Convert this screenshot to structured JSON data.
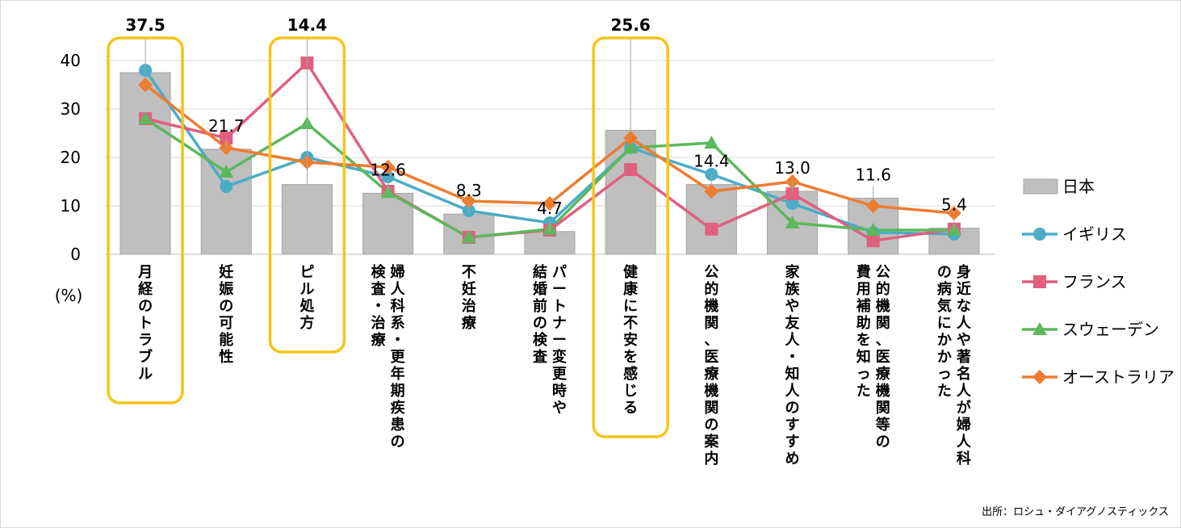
{
  "chart_data": {
    "type": "bar",
    "y_unit_label": "(%)",
    "ylim": [
      0,
      40
    ],
    "yticks": [
      0,
      10,
      20,
      30,
      40
    ],
    "grid": true,
    "legend_position": "right",
    "categories": [
      [
        "月経のトラブル"
      ],
      [
        "妊娠の可能性"
      ],
      [
        "ピル処方"
      ],
      [
        "婦人科系・更年期疾患の",
        "検査・治療"
      ],
      [
        "不妊治療"
      ],
      [
        "パートナー変更時や",
        "結婚前の検査"
      ],
      [
        "健康に不安を感じる"
      ],
      [
        "公的機関、医療機関の案内"
      ],
      [
        "家族や友人・知人のすすめ"
      ],
      [
        "公的機関、医療機関等の",
        "費用補助を知った"
      ],
      [
        "身近な人や著名人が婦人科",
        "の病気にかかった"
      ]
    ],
    "series": [
      {
        "name": "日本",
        "kind": "bar",
        "color": "#bfbfbf",
        "values": [
          37.5,
          21.7,
          14.4,
          12.6,
          8.3,
          4.7,
          25.6,
          14.4,
          13.0,
          11.6,
          5.4
        ]
      },
      {
        "name": "イギリス",
        "kind": "line",
        "marker": "circle",
        "color": "#4bacc6",
        "values": [
          38,
          14,
          20,
          16,
          9,
          6.5,
          22,
          16.5,
          10.5,
          4.5,
          4.2
        ]
      },
      {
        "name": "フランス",
        "kind": "line",
        "marker": "square",
        "color": "#e0607e",
        "values": [
          28,
          24,
          39.5,
          13,
          3.5,
          5,
          17.5,
          5.2,
          12.5,
          2.8,
          5.2
        ]
      },
      {
        "name": "スウェーデン",
        "kind": "line",
        "marker": "triangle",
        "color": "#5cb85c",
        "values": [
          28,
          17,
          27,
          12.8,
          3.5,
          5.2,
          22,
          23,
          6.5,
          5,
          5
        ]
      },
      {
        "name": "オーストラリア",
        "kind": "line",
        "marker": "diamond",
        "color": "#ed7d31",
        "values": [
          35,
          22,
          19,
          18,
          11,
          10.5,
          24,
          13,
          15,
          10,
          8.5
        ]
      }
    ],
    "data_labels": [
      "37.5",
      "21.7",
      "14.4",
      "12.6",
      "8.3",
      "4.7",
      "25.6",
      "14.4",
      "13.0",
      "11.6",
      "5.4"
    ],
    "bold_label_indices": [
      0,
      2,
      6
    ],
    "highlighted_category_indices": [
      0,
      2,
      6
    ],
    "highlight_color": "#f5c518"
  },
  "source": "出所：ロシュ・ダイアグノスティックス"
}
